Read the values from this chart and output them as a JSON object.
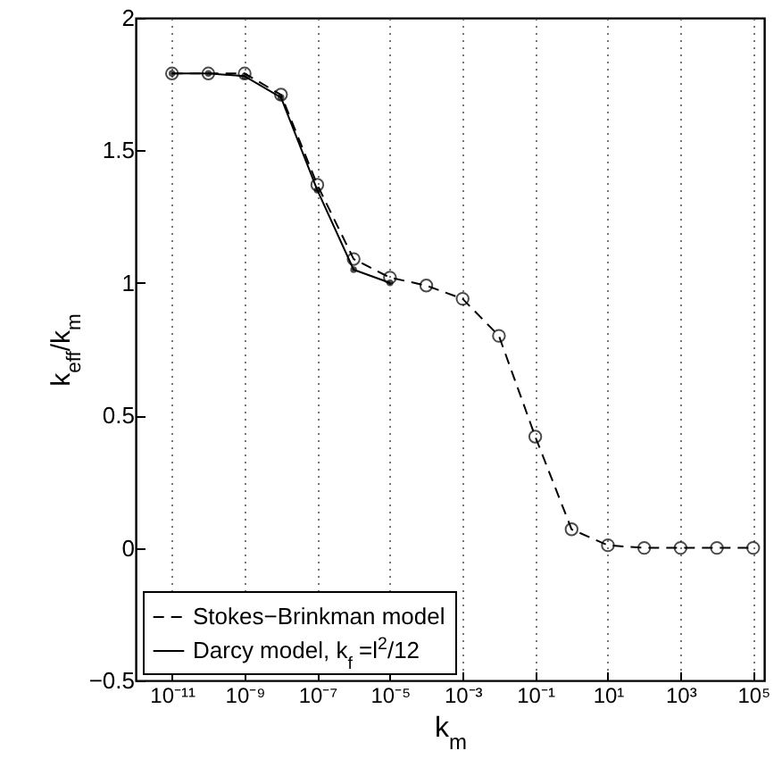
{
  "chart_data": {
    "type": "line",
    "xlabel": "k$_{m}$",
    "ylabel": "k$_{eff}$/k$_{m}$",
    "log": "x",
    "grid": "x",
    "legend": "bottom left",
    "xlim": [
      1e-12,
      200000.0
    ],
    "xticks": [
      {
        "value": 1e-11,
        "label": "10⁻¹¹"
      },
      {
        "value": 1e-09,
        "label": "10⁻⁹"
      },
      {
        "value": 1e-07,
        "label": "10⁻⁷"
      },
      {
        "value": 1e-05,
        "label": "10⁻⁵"
      },
      {
        "value": 0.001,
        "label": "10⁻³"
      },
      {
        "value": 0.1,
        "label": "10⁻¹"
      },
      {
        "value": 10,
        "label": "10¹"
      },
      {
        "value": 1000,
        "label": "10³"
      },
      {
        "value": 100000,
        "label": "10⁵"
      }
    ],
    "ylim": [
      -0.5,
      2
    ],
    "yticks": [
      -0.5,
      0,
      0.5,
      1,
      1.5,
      2
    ],
    "x": [
      1e-11,
      1e-10,
      1e-09,
      1e-08,
      1e-07,
      1e-06,
      1e-05,
      0.0001,
      0.001,
      0.01,
      0.1,
      1,
      10,
      100,
      1000,
      10000,
      100000
    ],
    "series": [
      {
        "name": "Stokes−Brinkman model",
        "color": "#000000",
        "line_style": "dashed",
        "marker": "circle",
        "values": [
          1.79,
          1.79,
          1.79,
          1.71,
          1.37,
          1.09,
          1.02,
          0.99,
          0.94,
          0.8,
          0.42,
          0.07,
          0.01,
          0,
          0,
          0,
          0
        ]
      },
      {
        "name": "Darcy model, k$_{f}$ =l$^{2}$/12",
        "color": "#000000",
        "line_style": "solid",
        "marker": "circle",
        "x": [
          1e-11,
          1e-10,
          1e-09,
          1e-08,
          1e-07,
          1e-06,
          1e-05
        ],
        "values": [
          1.79,
          1.79,
          1.78,
          1.7,
          1.35,
          1.05,
          1.0
        ]
      }
    ]
  }
}
